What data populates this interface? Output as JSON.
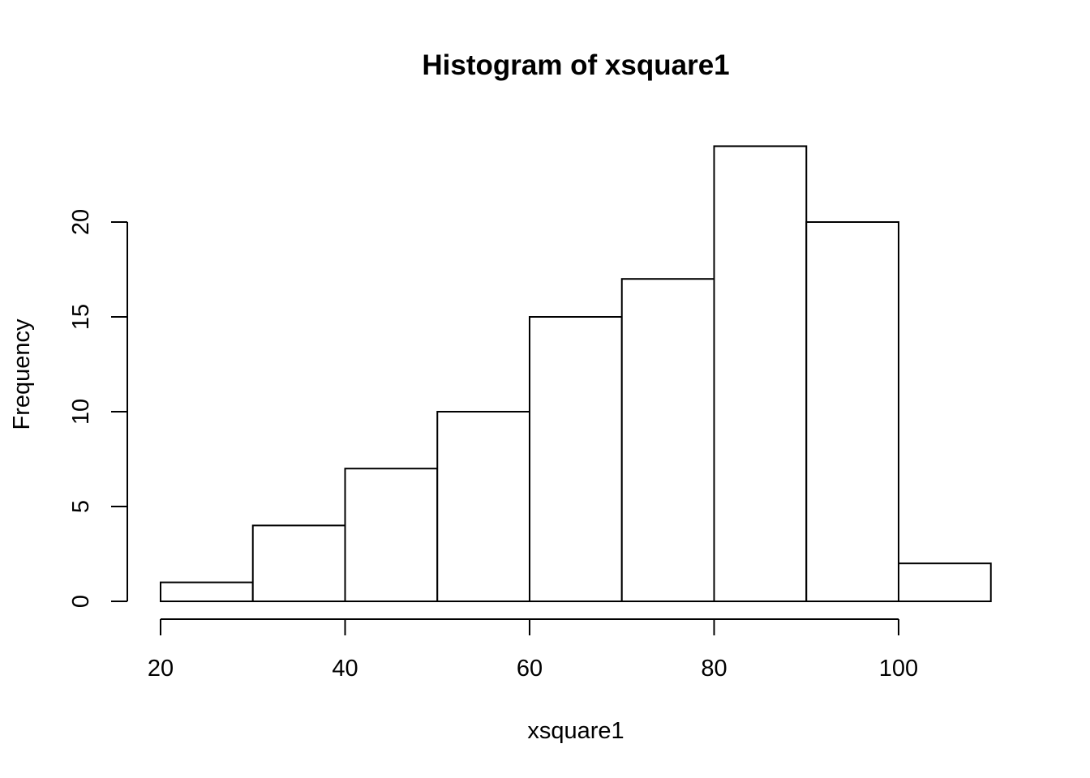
{
  "chart_data": {
    "type": "bar",
    "title": "Histogram of xsquare1",
    "xlabel": "xsquare1",
    "ylabel": "Frequency",
    "bins": [
      {
        "start": 20,
        "end": 30,
        "count": 1
      },
      {
        "start": 30,
        "end": 40,
        "count": 4
      },
      {
        "start": 40,
        "end": 50,
        "count": 7
      },
      {
        "start": 50,
        "end": 60,
        "count": 10
      },
      {
        "start": 60,
        "end": 70,
        "count": 15
      },
      {
        "start": 70,
        "end": 80,
        "count": 17
      },
      {
        "start": 80,
        "end": 90,
        "count": 24
      },
      {
        "start": 90,
        "end": 100,
        "count": 20
      },
      {
        "start": 100,
        "end": 110,
        "count": 2
      }
    ],
    "xticks": [
      "20",
      "40",
      "60",
      "80",
      "100"
    ],
    "yticks": [
      "0",
      "5",
      "10",
      "15",
      "20"
    ],
    "xlim": [
      20,
      110
    ],
    "ylim": [
      0,
      24
    ],
    "grid": false
  }
}
